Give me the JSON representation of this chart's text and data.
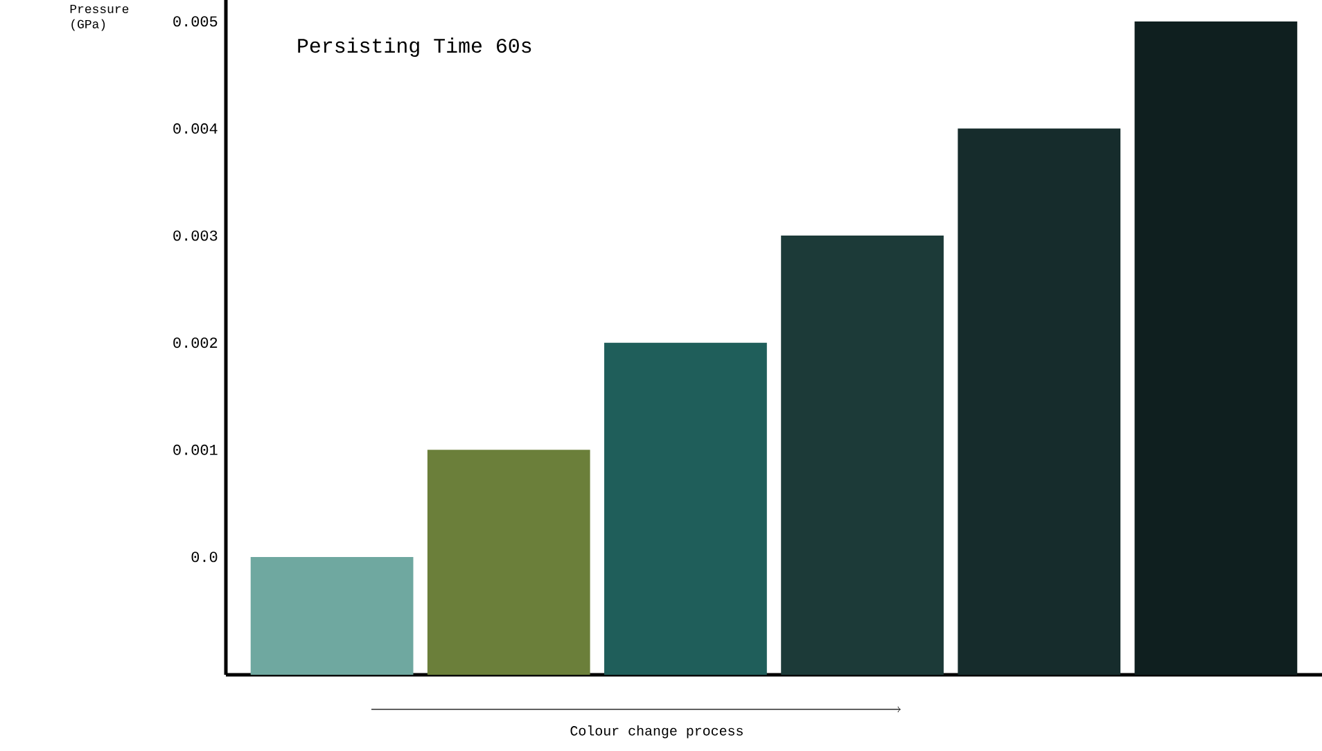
{
  "chart_data": {
    "type": "bar",
    "ylabel": "Pressure (GPa)",
    "categories": [
      null,
      null,
      null,
      null,
      null,
      null
    ],
    "base": [
      -0.0011,
      -0.0011,
      -0.0011,
      -0.0011,
      -0.0011,
      -0.0011
    ],
    "values": [
      0.0011,
      0.0021,
      0.0031,
      0.0041,
      0.0051,
      0.0061
    ],
    "colors": [
      "#6fa8a0",
      "#6b7f3a",
      "#1f5e5a",
      "#1c3a38",
      "#162c2c",
      "#0f1f1f"
    ],
    "ylim": [
      -0.0011,
      0.0052
    ],
    "yticks": [
      {
        "value": 0,
        "label": "0.0"
      },
      0.001,
      0.002,
      0.003,
      0.004,
      0.005
    ],
    "tick_labels": "y",
    "annotations": [
      "Persisting Time 60s",
      "Colour change process"
    ]
  }
}
